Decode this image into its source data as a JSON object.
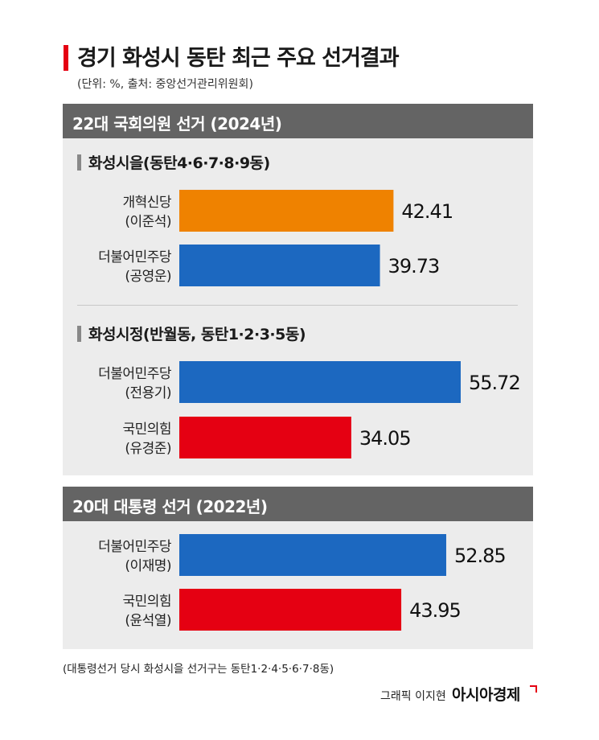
{
  "title": "경기 화성시 동탄 최근 주요 선거결과",
  "source": "(단위: %, 출처: 중앙선거관리위원회)",
  "note": "(대통령선거 당시 화성시을 선거구는 동탄1·2·4·5·6·7·8동)",
  "credit": "그래픽 이지현",
  "brand": "아시아경제",
  "colors": {
    "orange": "#ef8200",
    "blue": "#1c68c0",
    "red": "#e50012",
    "header": "#646464",
    "panel": "#ececec"
  },
  "chart_data": [
    {
      "type": "bar",
      "section": "22대 국회의원 선거 (2024년)",
      "title": "화성시을(동탄4·6·7·8·9동)",
      "categories": [
        "개혁신당\n(이준석)",
        "더불어민주당\n(공영운)"
      ],
      "labels": [
        [
          "개혁신당",
          "(이준석)"
        ],
        [
          "더불어민주당",
          "(공영운)"
        ]
      ],
      "values": [
        42.41,
        39.73
      ],
      "value_labels": [
        "42.41",
        "39.73"
      ],
      "colors": [
        "#ef8200",
        "#1c68c0"
      ]
    },
    {
      "type": "bar",
      "section": "22대 국회의원 선거 (2024년)",
      "title": "화성시정(반월동, 동탄1·2·3·5동)",
      "categories": [
        "더불어민주당\n(전용기)",
        "국민의힘\n(유경준)"
      ],
      "labels": [
        [
          "더불어민주당",
          "(전용기)"
        ],
        [
          "국민의힘",
          "(유경준)"
        ]
      ],
      "values": [
        55.72,
        34.05
      ],
      "value_labels": [
        "55.72",
        "34.05"
      ],
      "colors": [
        "#1c68c0",
        "#e50012"
      ]
    },
    {
      "type": "bar",
      "section": "20대 대통령 선거 (2022년)",
      "title": "",
      "categories": [
        "더불어민주당\n(이재명)",
        "국민의힘\n(윤석열)"
      ],
      "labels": [
        [
          "더불어민주당",
          "(이재명)"
        ],
        [
          "국민의힘",
          "(윤석열)"
        ]
      ],
      "values": [
        52.85,
        43.95
      ],
      "value_labels": [
        "52.85",
        "43.95"
      ],
      "colors": [
        "#1c68c0",
        "#e50012"
      ]
    }
  ]
}
